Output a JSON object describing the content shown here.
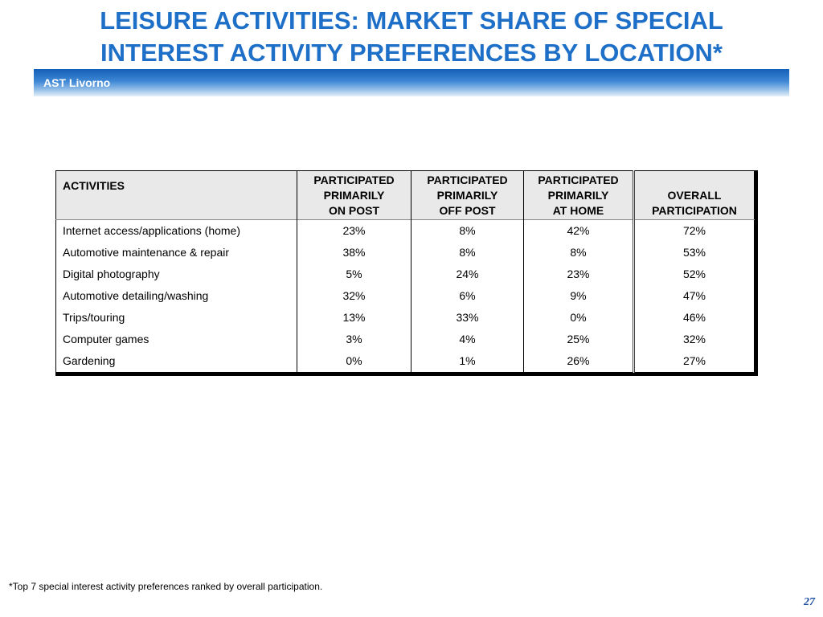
{
  "slide": {
    "title_line1": "LEISURE ACTIVITIES: MARKET SHARE OF SPECIAL",
    "title_line2": "INTEREST ACTIVITY PREFERENCES BY LOCATION*",
    "banner_label": "AST Livorno",
    "footnote": "*Top 7 special interest activity preferences ranked by overall participation.",
    "page_number": "27"
  },
  "table": {
    "headers": {
      "activities": "ACTIVITIES",
      "on_post": [
        "PARTICIPATED",
        "PRIMARILY",
        "ON POST"
      ],
      "off_post": [
        "PARTICIPATED",
        "PRIMARILY",
        "OFF POST"
      ],
      "at_home": [
        "PARTICIPATED",
        "PRIMARILY",
        "AT HOME"
      ],
      "overall": [
        "OVERALL",
        "PARTICIPATION"
      ]
    },
    "rows": [
      {
        "activity": "Internet access/applications (home)",
        "on_post": "23%",
        "off_post": "8%",
        "at_home": "42%",
        "overall": "72%"
      },
      {
        "activity": "Automotive maintenance & repair",
        "on_post": "38%",
        "off_post": "8%",
        "at_home": "8%",
        "overall": "53%"
      },
      {
        "activity": "Digital photography",
        "on_post": "5%",
        "off_post": "24%",
        "at_home": "23%",
        "overall": "52%"
      },
      {
        "activity": "Automotive detailing/washing",
        "on_post": "32%",
        "off_post": "6%",
        "at_home": "9%",
        "overall": "47%"
      },
      {
        "activity": "Trips/touring",
        "on_post": "13%",
        "off_post": "33%",
        "at_home": "0%",
        "overall": "46%"
      },
      {
        "activity": "Computer games",
        "on_post": "3%",
        "off_post": "4%",
        "at_home": "25%",
        "overall": "32%"
      },
      {
        "activity": "Gardening",
        "on_post": "0%",
        "off_post": "1%",
        "at_home": "26%",
        "overall": "27%"
      }
    ]
  },
  "colors": {
    "title": "#1e6fc8",
    "banner_dark": "#1560b8",
    "header_bg": "#e9e9e9",
    "page_number": "#1e4fa0"
  }
}
